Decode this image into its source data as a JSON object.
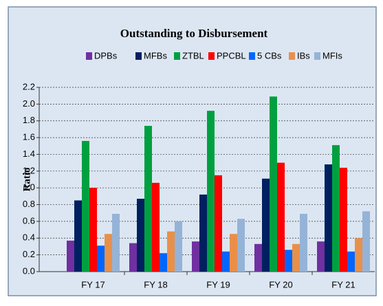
{
  "chart_data": {
    "type": "bar",
    "title": "Outstanding to Disbursement",
    "y_label": "Ratio",
    "categories": [
      "FY 17",
      "FY 18",
      "FY 19",
      "FY 20",
      "FY 21"
    ],
    "series": [
      {
        "name": "DPBs",
        "color": "#7030a0",
        "values": [
          0.37,
          0.34,
          0.36,
          0.33,
          0.36
        ]
      },
      {
        "name": "MFBs",
        "color": "#002060",
        "values": [
          0.85,
          0.87,
          0.92,
          1.11,
          1.28
        ]
      },
      {
        "name": "ZTBL",
        "color": "#00a040",
        "values": [
          1.56,
          1.74,
          1.92,
          2.09,
          1.51
        ]
      },
      {
        "name": "PPCBL",
        "color": "#ff0000",
        "values": [
          1.0,
          1.06,
          1.15,
          1.3,
          1.24
        ]
      },
      {
        "name": "5 CBs",
        "color": "#0066ff",
        "values": [
          0.31,
          0.22,
          0.24,
          0.26,
          0.24
        ]
      },
      {
        "name": "IBs",
        "color": "#e8904a",
        "values": [
          0.45,
          0.48,
          0.45,
          0.33,
          0.4
        ]
      },
      {
        "name": "MFIs",
        "color": "#95b3d7",
        "values": [
          0.69,
          0.6,
          0.63,
          0.69,
          0.72
        ]
      }
    ],
    "ylim": [
      0,
      2.2
    ],
    "yticks": [
      {
        "value": 0,
        "label": "0.0"
      },
      0.2,
      0.4,
      0.6,
      0.8,
      {
        "value": 1,
        "label": "1.0"
      },
      1.2,
      1.4,
      1.6,
      1.8,
      {
        "value": 2,
        "label": "2.0"
      },
      2.2
    ],
    "grid": true
  }
}
